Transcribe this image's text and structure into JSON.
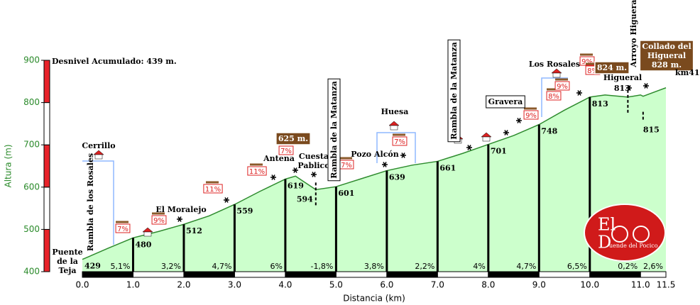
{
  "chart_data": {
    "type": "area",
    "x_label": "Distancia (km)",
    "y_label": "Altura (m)",
    "xlim": [
      0,
      11.5
    ],
    "ylim": [
      400,
      900
    ],
    "xticks": [
      {
        "value": 0,
        "label": "0.0"
      },
      {
        "value": 1,
        "label": "1.0"
      },
      {
        "value": 2,
        "label": "2.0"
      },
      {
        "value": 3,
        "label": "3.0"
      },
      {
        "value": 4,
        "label": "4.0"
      },
      {
        "value": 5,
        "label": "5.0"
      },
      {
        "value": 6,
        "label": "6.0"
      },
      {
        "value": 7,
        "label": "7.0"
      },
      {
        "value": 8,
        "label": "8.0"
      },
      {
        "value": 9,
        "label": "9.0"
      },
      {
        "value": 10,
        "label": "10.0"
      },
      {
        "value": 11,
        "label": "11.0"
      },
      11.5
    ],
    "yticks": [
      400,
      500,
      600,
      700,
      800,
      900
    ],
    "profile": {
      "color": "#ccffcc",
      "line_color": "#2e8b2e",
      "x": [
        0,
        0.5,
        1,
        1.5,
        2,
        2.5,
        3,
        3.5,
        4,
        4.2,
        4.6,
        5,
        5.5,
        6,
        6.5,
        7,
        7.5,
        8,
        8.5,
        9,
        9.5,
        10,
        10.3,
        10.75,
        11,
        11.05,
        11.5
      ],
      "values": [
        429,
        455,
        480,
        495,
        512,
        532,
        559,
        590,
        619,
        626,
        594,
        601,
        620,
        639,
        652,
        661,
        680,
        701,
        722,
        748,
        782,
        813,
        818,
        813,
        818,
        815,
        835
      ]
    },
    "spot_heights": {
      "x": [
        0,
        1,
        2,
        3,
        4,
        4.6,
        5,
        6,
        7,
        8,
        9,
        10,
        10.75,
        11.05
      ],
      "values": [
        429,
        480,
        512,
        559,
        619,
        594,
        601,
        639,
        661,
        701,
        748,
        813,
        813,
        815
      ]
    },
    "grades": {
      "values": [
        5.1,
        3.2,
        4.7,
        6,
        -1.8,
        3.8,
        2.2,
        4,
        4.7,
        6.5,
        0.2,
        2.6
      ],
      "value_labels": [
        "5,1%",
        "3,2%",
        "4,7%",
        "6%",
        "-1,8%",
        "3,8%",
        "2,2%",
        "4%",
        "4,7%",
        "6,5%",
        "0,2%",
        "2,6%"
      ]
    },
    "grade_flags": {
      "values": [
        7,
        9,
        11,
        11,
        7,
        7,
        7,
        9,
        8,
        9,
        9,
        8
      ],
      "value_labels": [
        "7%",
        "9%",
        "11%",
        "11%",
        "7%",
        "7%",
        "7%",
        "9%",
        "8%",
        "9%",
        "9%",
        "8%"
      ]
    },
    "annotations": [
      "Desnivel Acumulado: 439 m.",
      [
        "Puente",
        "de la",
        "Teja"
      ],
      "Rambla de los Rosales",
      "Cerrillo",
      "El Moralejo",
      "Antena",
      [
        "Cuesta",
        "Pablico"
      ],
      "Rambla de la Matanza",
      "Huesa",
      "Pozo Alcón",
      "Rambla de la Matanza",
      "Gravera",
      "Los Rosales",
      "Higueral",
      "Arroyo Higueral",
      [
        "Collado del",
        "Higueral",
        "828 m."
      ],
      "km41",
      "625 m.",
      "824 m."
    ],
    "logo": [
      "El",
      "D",
      "uende del Pocico"
    ]
  }
}
